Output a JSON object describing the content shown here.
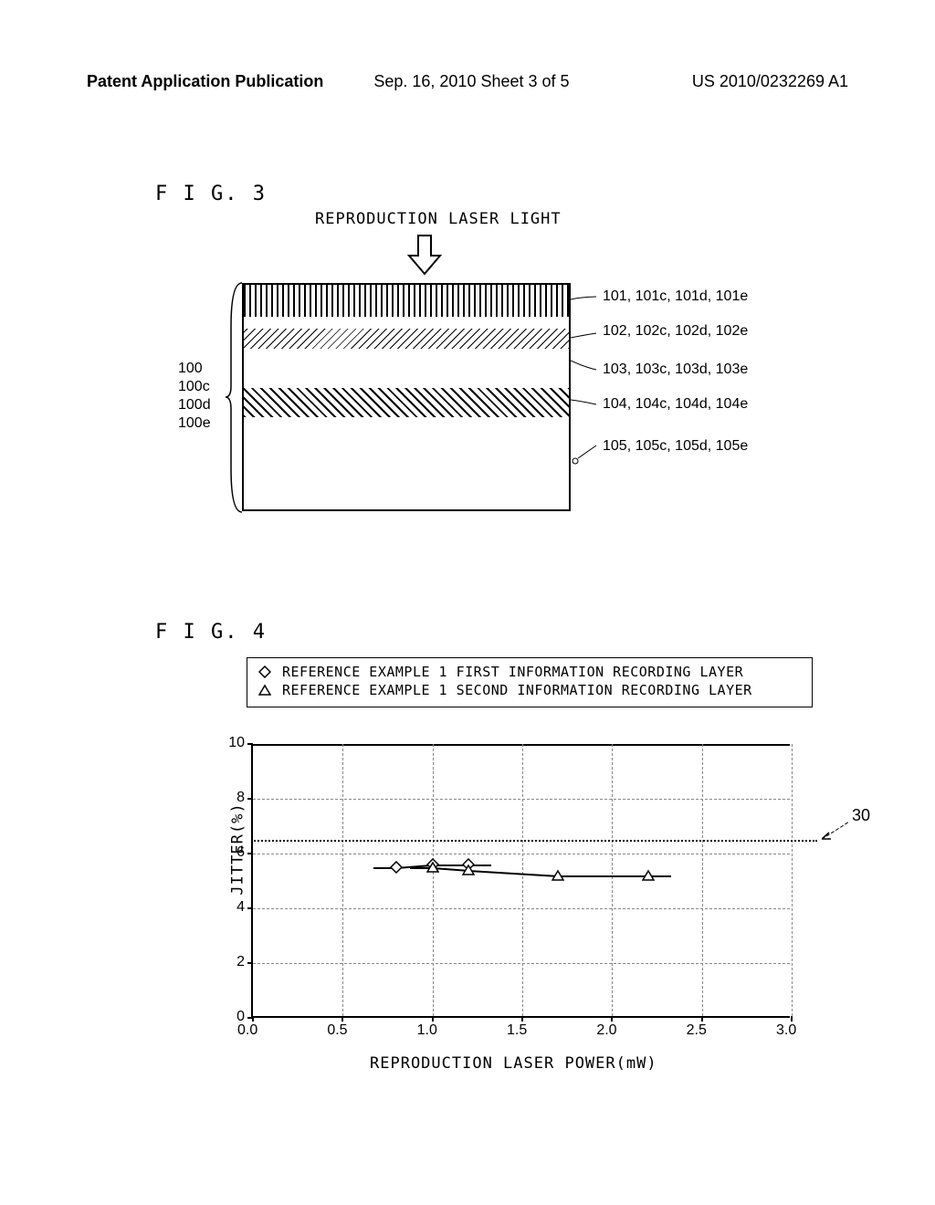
{
  "header": {
    "left": "Patent Application Publication",
    "center": "Sep. 16, 2010  Sheet 3 of 5",
    "right": "US 2010/0232269 A1"
  },
  "fig3": {
    "label": "F I G.  3",
    "laser_label": "REPRODUCTION LASER LIGHT",
    "group_labels": [
      "100",
      "100c",
      "100d",
      "100e"
    ],
    "layer_labels": {
      "l101": "101, 101c, 101d, 101e",
      "l102": "102, 102c, 102d, 102e",
      "l103": "103, 103c, 103d, 103e",
      "l104": "104, 104c, 104d, 104e",
      "l105": "105, 105c, 105d, 105e"
    }
  },
  "fig4": {
    "label": "F I G.  4",
    "legend": {
      "series1": "REFERENCE EXAMPLE 1 FIRST INFORMATION RECORDING LAYER",
      "series2": "REFERENCE EXAMPLE 1 SECOND INFORMATION RECORDING LAYER"
    },
    "y_label": "JITTER(%)",
    "x_label": "REPRODUCTION LASER POWER(mW)",
    "y_ticks": [
      0,
      2,
      4,
      6,
      8,
      10
    ],
    "x_ticks": [
      "0.0",
      "0.5",
      "1.0",
      "1.5",
      "2.0",
      "2.5",
      "3.0"
    ],
    "ylim": [
      0,
      10
    ],
    "xlim": [
      0,
      3.0
    ],
    "ref_line_value": 6.5,
    "ref_line_label": "30",
    "series1_data": [
      {
        "x": 0.8,
        "y": 5.5
      },
      {
        "x": 1.0,
        "y": 5.6
      },
      {
        "x": 1.2,
        "y": 5.6
      }
    ],
    "series2_data": [
      {
        "x": 1.0,
        "y": 5.5
      },
      {
        "x": 1.2,
        "y": 5.4
      },
      {
        "x": 1.7,
        "y": 5.2
      },
      {
        "x": 2.2,
        "y": 5.2
      }
    ],
    "series1_marker": "diamond",
    "series2_marker": "triangle"
  }
}
